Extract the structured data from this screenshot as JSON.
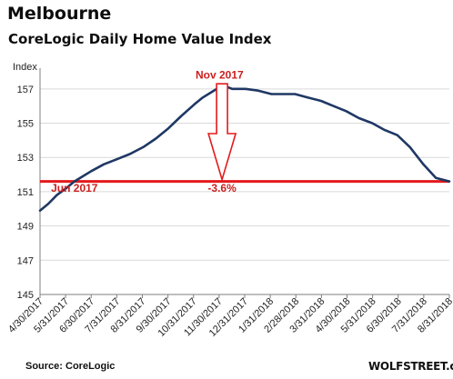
{
  "chart_data": {
    "type": "line",
    "title": "Melbourne",
    "subtitle": "CoreLogic Daily Home Value Index",
    "ylabel": "Index",
    "xlabel": "",
    "ylim": [
      145,
      158
    ],
    "yticks": [
      145,
      147,
      149,
      151,
      153,
      155,
      157
    ],
    "xlim": [
      "2017-04-30",
      "2018-08-31"
    ],
    "xtick_labels": [
      "4/30/2017",
      "5/31/2017",
      "6/30/2017",
      "7/31/2017",
      "8/31/2017",
      "9/30/2017",
      "10/31/2017",
      "11/30/2017",
      "12/31/2017",
      "1/31/2018",
      "2/28/2018",
      "3/31/2018",
      "4/30/2018",
      "5/31/2018",
      "6/30/2018",
      "7/31/2018",
      "8/31/2018"
    ],
    "grid": {
      "horizontal": true,
      "vertical": false
    },
    "series": [
      {
        "color": "#1f3864",
        "points": [
          [
            "2017-04-30",
            149.9
          ],
          [
            "2017-05-10",
            150.3
          ],
          [
            "2017-05-20",
            150.8
          ],
          [
            "2017-05-31",
            151.2
          ],
          [
            "2017-06-10",
            151.6
          ],
          [
            "2017-06-20",
            151.9
          ],
          [
            "2017-06-30",
            152.2
          ],
          [
            "2017-07-15",
            152.6
          ],
          [
            "2017-07-31",
            152.9
          ],
          [
            "2017-08-15",
            153.2
          ],
          [
            "2017-08-31",
            153.6
          ],
          [
            "2017-09-15",
            154.1
          ],
          [
            "2017-09-30",
            154.7
          ],
          [
            "2017-10-15",
            155.4
          ],
          [
            "2017-10-31",
            156.1
          ],
          [
            "2017-11-10",
            156.5
          ],
          [
            "2017-11-20",
            156.8
          ],
          [
            "2017-11-30",
            157.1
          ],
          [
            "2017-12-05",
            157.2
          ],
          [
            "2017-12-15",
            157.0
          ],
          [
            "2017-12-31",
            157.0
          ],
          [
            "2018-01-15",
            156.9
          ],
          [
            "2018-01-31",
            156.7
          ],
          [
            "2018-02-14",
            156.7
          ],
          [
            "2018-02-28",
            156.7
          ],
          [
            "2018-03-15",
            156.5
          ],
          [
            "2018-03-31",
            156.3
          ],
          [
            "2018-04-15",
            156.0
          ],
          [
            "2018-04-30",
            155.7
          ],
          [
            "2018-05-15",
            155.3
          ],
          [
            "2018-05-31",
            155.0
          ],
          [
            "2018-06-15",
            154.6
          ],
          [
            "2018-06-30",
            154.3
          ],
          [
            "2018-07-15",
            153.6
          ],
          [
            "2018-07-31",
            152.6
          ],
          [
            "2018-08-15",
            151.8
          ],
          [
            "2018-08-31",
            151.6
          ]
        ]
      }
    ],
    "reference_line": {
      "value": 151.6,
      "color": "#e31a1c"
    },
    "annotations": [
      {
        "text": "Nov 2017",
        "x": "2017-11-30",
        "y": 157.6
      },
      {
        "text": "Jun 2017",
        "x": "2017-06-10",
        "y": 151.0
      },
      {
        "text": "-3.6%",
        "x": "2017-12-03",
        "y": 151.0
      }
    ],
    "arrow": {
      "from": [
        "2017-12-03",
        157.3
      ],
      "to": [
        "2017-12-03",
        151.6
      ]
    }
  },
  "source": "Source: CoreLogic",
  "watermark": "WOLFSTREET.com"
}
